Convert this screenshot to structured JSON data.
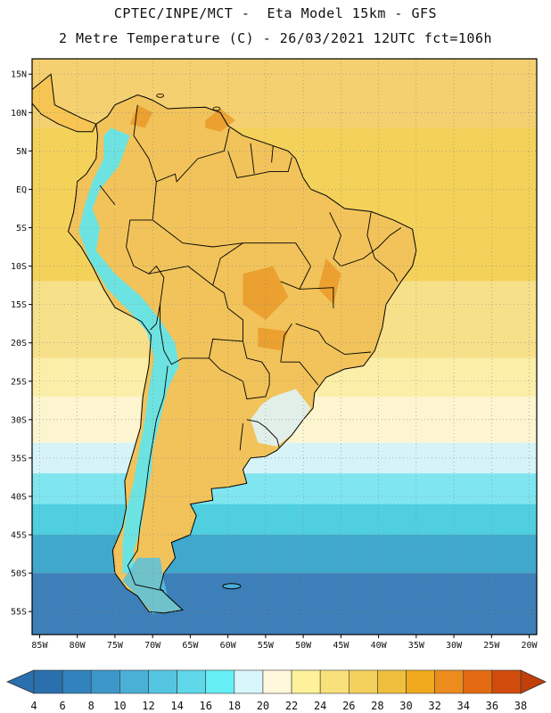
{
  "header": {
    "line1": "CPTEC/INPE/MCT -  Eta Model 15km - GFS",
    "line2": "2 Metre Temperature (C) - 26/03/2021 12UTC fct=106h"
  },
  "map": {
    "lon_range": [
      -86,
      -19
    ],
    "lat_range": [
      -58,
      17
    ],
    "lon_ticks": [
      "85W",
      "80W",
      "75W",
      "70W",
      "65W",
      "60W",
      "55W",
      "50W",
      "45W",
      "40W",
      "35W",
      "30W",
      "25W",
      "20W"
    ],
    "lon_values": [
      -85,
      -80,
      -75,
      -70,
      -65,
      -60,
      -55,
      -50,
      -45,
      -40,
      -35,
      -30,
      -25,
      -20
    ],
    "lat_ticks": [
      "15N",
      "10N",
      "5N",
      "EQ",
      "5S",
      "10S",
      "15S",
      "20S",
      "25S",
      "30S",
      "35S",
      "40S",
      "45S",
      "50S",
      "55S"
    ],
    "lat_values": [
      15,
      10,
      5,
      0,
      -5,
      -10,
      -15,
      -20,
      -25,
      -30,
      -35,
      -40,
      -45,
      -50,
      -55
    ],
    "ocean_bands": [
      {
        "lat_top": 17,
        "lat_bottom": 8,
        "color": "#f4d070"
      },
      {
        "lat_top": 8,
        "lat_bottom": -12,
        "color": "#f4d25a"
      },
      {
        "lat_top": -12,
        "lat_bottom": -22,
        "color": "#f7e08a"
      },
      {
        "lat_top": -22,
        "lat_bottom": -27,
        "color": "#fbeea8"
      },
      {
        "lat_top": -27,
        "lat_bottom": -33,
        "color": "#fdf5d0"
      },
      {
        "lat_top": -33,
        "lat_bottom": -37,
        "color": "#d6f3f8"
      },
      {
        "lat_top": -37,
        "lat_bottom": -41,
        "color": "#7fe6f0"
      },
      {
        "lat_top": -41,
        "lat_bottom": -45,
        "color": "#4fcfe0"
      },
      {
        "lat_top": -45,
        "lat_bottom": -50,
        "color": "#3fa8cc"
      },
      {
        "lat_top": -50,
        "lat_bottom": -58,
        "color": "#3d7fb8"
      }
    ],
    "land_color": "#f1c35a",
    "andes_color": "#5ee7f0",
    "hot_color": "#e8921e",
    "border_color": "#000000"
  },
  "colorbar": {
    "labels": [
      "4",
      "6",
      "8",
      "10",
      "12",
      "14",
      "16",
      "18",
      "20",
      "22",
      "24",
      "26",
      "28",
      "30",
      "32",
      "34",
      "36",
      "38"
    ],
    "colors": [
      "#2a6fae",
      "#3282bd",
      "#3e97c9",
      "#4ab0d6",
      "#55c6e2",
      "#5fd8ea",
      "#66eef5",
      "#d8f6fb",
      "#fff8dc",
      "#fdf29a",
      "#f8e07a",
      "#f4d15c",
      "#efbf3d",
      "#f0a91d",
      "#ec8b1e",
      "#e46a12",
      "#d14c0c"
    ],
    "left_arrow_color": "#2a6fae",
    "right_arrow_color": "#c0400a"
  }
}
